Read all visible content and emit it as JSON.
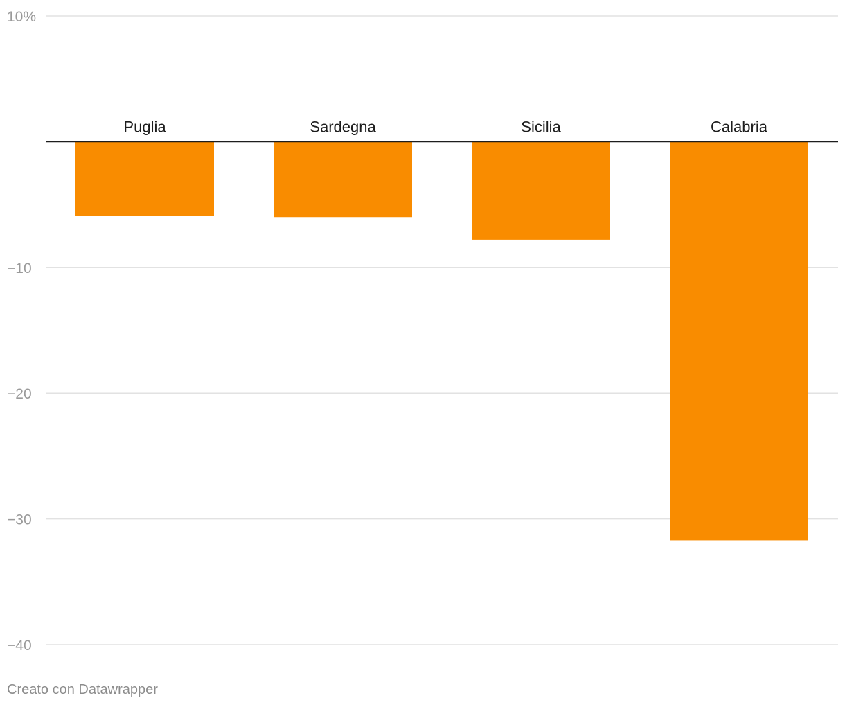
{
  "chart_data": {
    "type": "bar",
    "categories": [
      "Puglia",
      "Sardegna",
      "Sicilia",
      "Calabria"
    ],
    "values": [
      -5.9,
      -6.0,
      -7.8,
      -31.7
    ],
    "ylim": [
      -40,
      10
    ],
    "yticks": [
      10,
      -10,
      -20,
      -30,
      -40
    ],
    "ytick_labels": [
      "10%",
      "−10",
      "−20",
      "−30",
      "−40"
    ],
    "bar_color": "#f98c00",
    "grid": true,
    "title": "",
    "xlabel": "",
    "ylabel": ""
  },
  "footer": {
    "credit": "Creato con Datawrapper"
  }
}
